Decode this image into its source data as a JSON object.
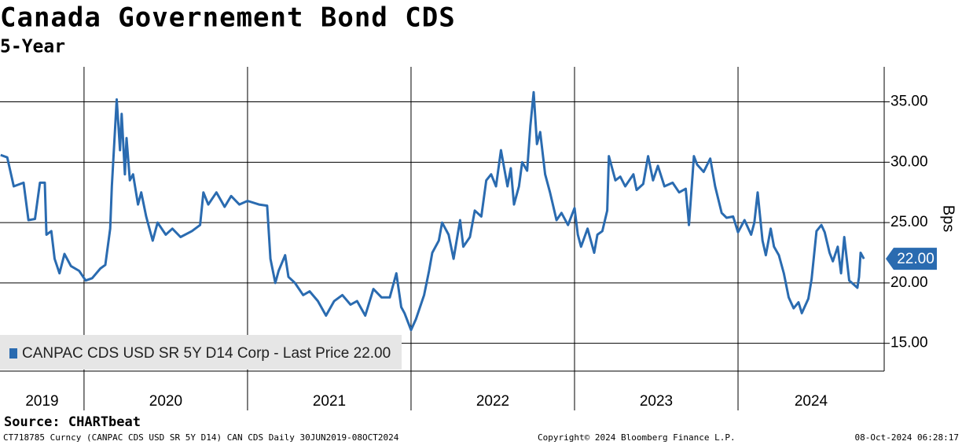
{
  "chart_data": {
    "type": "line",
    "title": "Canada Governement Bond CDS",
    "subtitle": "5-Year",
    "y_label": "Bps",
    "source": "Source: CHARTbeat",
    "footer_left": "CT718785 Curncy (CANPAC CDS USD SR 5Y D14) CAN CDS  Daily 30JUN2019-08OCT2024",
    "footer_center": "Copyright© 2024 Bloomberg Finance L.P.",
    "footer_right": "08-Oct-2024 06:28:17",
    "x": [
      2019.49,
      2019.53,
      2019.57,
      2019.63,
      2019.66,
      2019.7,
      2019.73,
      2019.76,
      2019.77,
      2019.8,
      2019.82,
      2019.85,
      2019.88,
      2019.92,
      2019.97,
      2020.01,
      2020.05,
      2020.1,
      2020.13,
      2020.16,
      2020.17,
      2020.2,
      2020.22,
      2020.23,
      2020.25,
      2020.26,
      2020.28,
      2020.3,
      2020.33,
      2020.35,
      2020.38,
      2020.4,
      2020.42,
      2020.45,
      2020.5,
      2020.54,
      2020.59,
      2020.66,
      2020.71,
      2020.73,
      2020.76,
      2020.81,
      2020.86,
      2020.9,
      2020.95,
      2021.0,
      2021.07,
      2021.12,
      2021.14,
      2021.17,
      2021.19,
      2021.23,
      2021.25,
      2021.29,
      2021.34,
      2021.38,
      2021.43,
      2021.48,
      2021.53,
      2021.58,
      2021.63,
      2021.67,
      2021.72,
      2021.77,
      2021.82,
      2021.87,
      2021.91,
      2021.94,
      2021.96,
      2022.0,
      2022.03,
      2022.08,
      2022.11,
      2022.13,
      2022.17,
      2022.19,
      2022.23,
      2022.26,
      2022.3,
      2022.32,
      2022.36,
      2022.39,
      2022.43,
      2022.46,
      2022.49,
      2022.52,
      2022.55,
      2022.59,
      2022.61,
      2022.63,
      2022.66,
      2022.68,
      2022.71,
      2022.73,
      2022.75,
      2022.77,
      2022.79,
      2022.82,
      2022.85,
      2022.89,
      2022.92,
      2022.96,
      2023.0,
      2023.02,
      2023.04,
      2023.08,
      2023.12,
      2023.14,
      2023.17,
      2023.2,
      2023.21,
      2023.25,
      2023.28,
      2023.31,
      2023.36,
      2023.38,
      2023.42,
      2023.45,
      2023.48,
      2023.51,
      2023.55,
      2023.6,
      2023.64,
      2023.68,
      2023.7,
      2023.73,
      2023.75,
      2023.79,
      2023.83,
      2023.86,
      2023.9,
      2023.93,
      2023.97,
      2024.0,
      2024.04,
      2024.08,
      2024.1,
      2024.12,
      2024.15,
      2024.17,
      2024.2,
      2024.22,
      2024.25,
      2024.28,
      2024.31,
      2024.34,
      2024.37,
      2024.39,
      2024.43,
      2024.45,
      2024.48,
      2024.51,
      2024.53,
      2024.56,
      2024.58,
      2024.61,
      2024.63,
      2024.65,
      2024.68,
      2024.73,
      2024.74,
      2024.75,
      2024.77
    ],
    "series": [
      {
        "name": "CANPAC CDS USD SR 5Y D14 Corp - Last Price 22.00",
        "color": "#2a6bb0",
        "values": [
          30.6,
          30.4,
          28,
          28.3,
          25.2,
          25.3,
          28.3,
          28.3,
          24,
          24.3,
          22,
          20.8,
          22.4,
          21.4,
          21,
          20.2,
          20.4,
          21.2,
          21.5,
          24.5,
          28,
          35.2,
          31,
          34,
          29,
          32,
          28.5,
          29,
          26.5,
          27.5,
          25.5,
          24.5,
          23.5,
          25,
          24,
          24.5,
          23.8,
          24.3,
          24.8,
          27.5,
          26.5,
          27.5,
          26.3,
          27.2,
          26.5,
          26.8,
          26.5,
          26.4,
          22,
          20,
          21,
          22.3,
          20.5,
          20,
          19,
          19.3,
          18.5,
          17.3,
          18.5,
          19,
          18.2,
          18.5,
          17.3,
          19.5,
          18.8,
          18.8,
          20.8,
          18,
          17.5,
          16.1,
          17,
          19,
          21,
          22.5,
          23.5,
          25,
          24,
          22,
          25.2,
          23,
          23.8,
          26,
          25.5,
          28.5,
          29,
          28,
          31,
          28,
          29.5,
          26.5,
          28,
          30,
          29.3,
          33,
          35.8,
          31.5,
          32.5,
          29,
          27.5,
          25.2,
          25.8,
          24.8,
          26.2,
          24,
          23,
          24.5,
          22.5,
          24,
          24.3,
          26,
          30.5,
          28.5,
          28.8,
          28,
          29,
          27.7,
          28.2,
          30.5,
          28.5,
          29.7,
          28,
          28.3,
          27.5,
          27.8,
          24.8,
          30.5,
          29.8,
          29.2,
          30.3,
          28,
          25.8,
          25.4,
          25.5,
          24.2,
          25.2,
          24,
          25,
          27.5,
          23.5,
          22.3,
          24.5,
          23,
          22.3,
          20.8,
          18.8,
          17.9,
          18.4,
          17.5,
          18.7,
          20.3,
          24.3,
          24.8,
          24.2,
          22.5,
          21.8,
          23,
          20.8,
          23.8,
          20.2,
          19.6,
          20.5,
          22.5,
          22
        ]
      }
    ],
    "last_price": {
      "value": 22,
      "label": "22.00"
    },
    "xlim": [
      2019.486,
      2024.894
    ],
    "xticks": [
      2019,
      2020,
      2021,
      2022,
      2023,
      2024
    ],
    "ylim": [
      12.7,
      37.9
    ],
    "yticks": [
      {
        "value": 15,
        "label": "15.00"
      },
      {
        "value": 20,
        "label": "20.00"
      },
      {
        "value": 25,
        "label": "25.00"
      },
      {
        "value": 30,
        "label": "30.00"
      },
      {
        "value": 35,
        "label": "35.00"
      }
    ],
    "grid": true,
    "legend": "lower left"
  }
}
